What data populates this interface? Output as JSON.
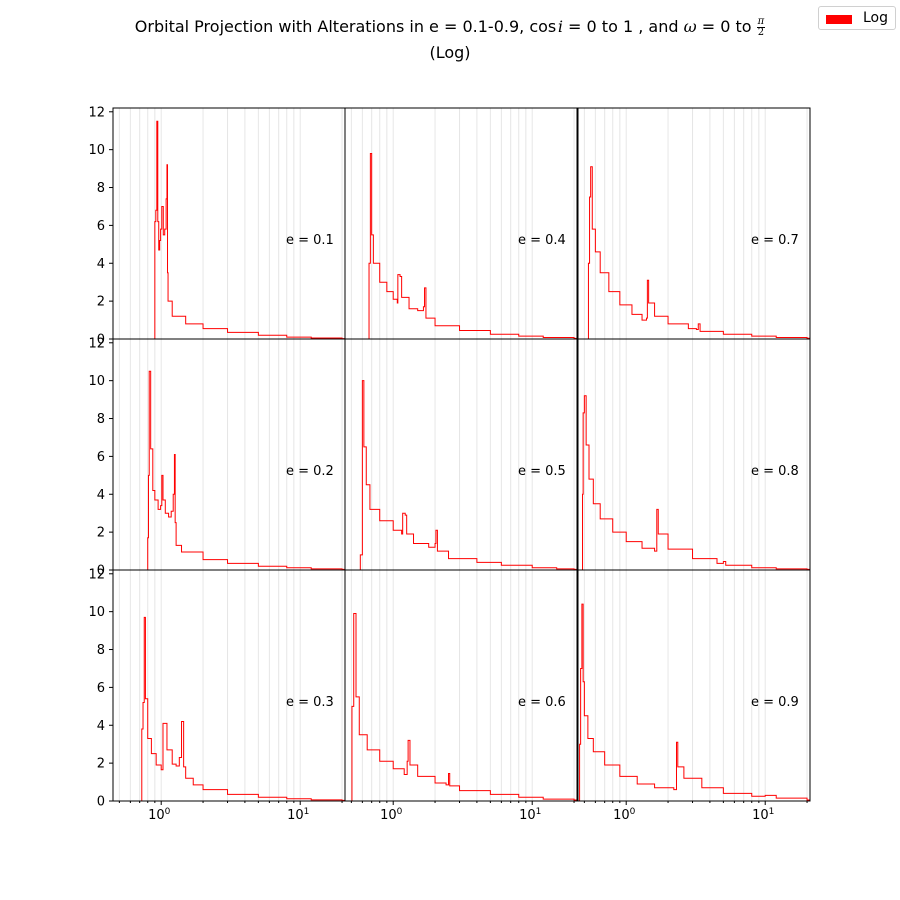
{
  "title": {
    "prefix": "Orbital Projection with Alterations in e = 0.1-0.9, ",
    "cos_part": "cos",
    "cos_var": "i",
    "mid": " = 0 to 1 , and ",
    "omega": "ω",
    "to": " = 0 to ",
    "pi": "π",
    "two": "2",
    "line2": "(Log)"
  },
  "legend": {
    "label": "Log",
    "color": "#ff0000"
  },
  "chart_data": {
    "type": "line",
    "style": "step histogram, 3x3 grid of panels, shared axes",
    "series_color": "#ff0000",
    "x_scale": "log",
    "xlim": [
      0.45,
      21
    ],
    "ylim": [
      0,
      12.2
    ],
    "yticks": [
      0,
      2,
      4,
      6,
      8,
      10,
      12
    ],
    "xtick_labels": [
      {
        "value": 1,
        "base": "10",
        "exp": "0"
      },
      {
        "value": 10,
        "base": "10",
        "exp": "1"
      }
    ],
    "grid": "vertical minor gridlines (log)",
    "legend_position": "top-right",
    "panels": [
      {
        "label": "e = 0.1",
        "points": [
          [
            0.895,
            0
          ],
          [
            0.9,
            6.2
          ],
          [
            0.915,
            6.8
          ],
          [
            0.93,
            11.5
          ],
          [
            0.945,
            6.2
          ],
          [
            0.96,
            4.7
          ],
          [
            0.975,
            5.2
          ],
          [
            0.99,
            5.8
          ],
          [
            1.01,
            7.0
          ],
          [
            1.035,
            5.5
          ],
          [
            1.06,
            5.8
          ],
          [
            1.085,
            7.4
          ],
          [
            1.1,
            9.2
          ],
          [
            1.11,
            3.5
          ],
          [
            1.12,
            2.0
          ],
          [
            1.2,
            1.2
          ],
          [
            1.5,
            0.8
          ],
          [
            2,
            0.55
          ],
          [
            3,
            0.35
          ],
          [
            5,
            0.2
          ],
          [
            8,
            0.1
          ],
          [
            12,
            0.05
          ],
          [
            20,
            0.02
          ]
        ]
      },
      {
        "label": "e = 0.2",
        "points": [
          [
            0.795,
            0
          ],
          [
            0.8,
            1.7
          ],
          [
            0.81,
            5.0
          ],
          [
            0.82,
            10.5
          ],
          [
            0.84,
            6.4
          ],
          [
            0.87,
            4.2
          ],
          [
            0.9,
            3.7
          ],
          [
            0.95,
            3.2
          ],
          [
            0.99,
            3.4
          ],
          [
            1.01,
            5.0
          ],
          [
            1.03,
            3.7
          ],
          [
            1.07,
            3.0
          ],
          [
            1.13,
            2.8
          ],
          [
            1.18,
            3.1
          ],
          [
            1.22,
            4.0
          ],
          [
            1.245,
            6.1
          ],
          [
            1.26,
            2.5
          ],
          [
            1.28,
            1.3
          ],
          [
            1.4,
            0.95
          ],
          [
            2,
            0.55
          ],
          [
            3,
            0.35
          ],
          [
            5,
            0.2
          ],
          [
            8,
            0.12
          ],
          [
            12,
            0.06
          ],
          [
            20,
            0.03
          ]
        ]
      },
      {
        "label": "e = 0.3",
        "points": [
          [
            0.72,
            0
          ],
          [
            0.725,
            3.8
          ],
          [
            0.74,
            5.2
          ],
          [
            0.755,
            9.7
          ],
          [
            0.77,
            5.4
          ],
          [
            0.8,
            3.3
          ],
          [
            0.85,
            2.5
          ],
          [
            0.92,
            1.9
          ],
          [
            1.0,
            1.65
          ],
          [
            1.03,
            4.1
          ],
          [
            1.05,
            4.1
          ],
          [
            1.1,
            2.7
          ],
          [
            1.2,
            1.95
          ],
          [
            1.28,
            1.85
          ],
          [
            1.35,
            2.3
          ],
          [
            1.4,
            4.2
          ],
          [
            1.45,
            1.8
          ],
          [
            1.5,
            1.2
          ],
          [
            1.7,
            0.85
          ],
          [
            2,
            0.6
          ],
          [
            3,
            0.35
          ],
          [
            5,
            0.2
          ],
          [
            8,
            0.12
          ],
          [
            12,
            0.06
          ],
          [
            20,
            0.03
          ]
        ]
      },
      {
        "label": "e = 0.4",
        "points": [
          [
            0.665,
            0
          ],
          [
            0.67,
            4.0
          ],
          [
            0.685,
            9.8
          ],
          [
            0.7,
            5.5
          ],
          [
            0.72,
            4.0
          ],
          [
            0.8,
            3.0
          ],
          [
            0.9,
            2.5
          ],
          [
            1.0,
            2.1
          ],
          [
            1.07,
            1.9
          ],
          [
            1.08,
            3.4
          ],
          [
            1.12,
            3.3
          ],
          [
            1.15,
            2.2
          ],
          [
            1.3,
            1.6
          ],
          [
            1.5,
            1.5
          ],
          [
            1.65,
            1.7
          ],
          [
            1.68,
            2.7
          ],
          [
            1.72,
            1.1
          ],
          [
            2,
            0.7
          ],
          [
            3,
            0.45
          ],
          [
            5,
            0.25
          ],
          [
            8,
            0.15
          ],
          [
            12,
            0.08
          ],
          [
            20,
            0.03
          ]
        ]
      },
      {
        "label": "e = 0.5",
        "points": [
          [
            0.575,
            0
          ],
          [
            0.58,
            0.8
          ],
          [
            0.6,
            10.0
          ],
          [
            0.615,
            6.5
          ],
          [
            0.64,
            4.5
          ],
          [
            0.68,
            3.2
          ],
          [
            0.8,
            2.6
          ],
          [
            1.0,
            2.1
          ],
          [
            1.15,
            1.9
          ],
          [
            1.17,
            3.0
          ],
          [
            1.22,
            2.9
          ],
          [
            1.25,
            1.9
          ],
          [
            1.4,
            1.4
          ],
          [
            1.8,
            1.2
          ],
          [
            2.0,
            1.4
          ],
          [
            2.03,
            2.1
          ],
          [
            2.08,
            1.0
          ],
          [
            2.5,
            0.6
          ],
          [
            4,
            0.4
          ],
          [
            6,
            0.25
          ],
          [
            10,
            0.12
          ],
          [
            15,
            0.06
          ],
          [
            20,
            0.03
          ]
        ]
      },
      {
        "label": "e = 0.6",
        "points": [
          [
            0.5,
            0
          ],
          [
            0.505,
            5.0
          ],
          [
            0.52,
            9.9
          ],
          [
            0.54,
            5.5
          ],
          [
            0.57,
            3.5
          ],
          [
            0.65,
            2.7
          ],
          [
            0.8,
            2.1
          ],
          [
            1.0,
            1.7
          ],
          [
            1.2,
            1.4
          ],
          [
            1.26,
            2.1
          ],
          [
            1.28,
            3.2
          ],
          [
            1.32,
            1.9
          ],
          [
            1.5,
            1.3
          ],
          [
            2,
            0.95
          ],
          [
            2.4,
            0.85
          ],
          [
            2.5,
            1.45
          ],
          [
            2.55,
            0.8
          ],
          [
            3,
            0.55
          ],
          [
            5,
            0.35
          ],
          [
            8,
            0.2
          ],
          [
            12,
            0.1
          ],
          [
            20,
            0.05
          ]
        ]
      },
      {
        "label": "e = 0.7",
        "points": [
          [
            0.53,
            0
          ],
          [
            0.535,
            4.0
          ],
          [
            0.545,
            7.5
          ],
          [
            0.555,
            9.1
          ],
          [
            0.57,
            5.8
          ],
          [
            0.6,
            4.6
          ],
          [
            0.65,
            3.5
          ],
          [
            0.75,
            2.5
          ],
          [
            0.9,
            1.8
          ],
          [
            1.1,
            1.3
          ],
          [
            1.3,
            1.0
          ],
          [
            1.4,
            1.1
          ],
          [
            1.42,
            3.1
          ],
          [
            1.45,
            1.9
          ],
          [
            1.6,
            1.2
          ],
          [
            2,
            0.8
          ],
          [
            2.8,
            0.55
          ],
          [
            3.2,
            0.5
          ],
          [
            3.3,
            0.8
          ],
          [
            3.4,
            0.4
          ],
          [
            5,
            0.25
          ],
          [
            8,
            0.15
          ],
          [
            12,
            0.08
          ],
          [
            20,
            0.04
          ]
        ]
      },
      {
        "label": "e = 0.8",
        "points": [
          [
            0.48,
            0
          ],
          [
            0.485,
            4.0
          ],
          [
            0.49,
            8.3
          ],
          [
            0.5,
            9.2
          ],
          [
            0.515,
            6.6
          ],
          [
            0.54,
            4.8
          ],
          [
            0.58,
            3.5
          ],
          [
            0.65,
            2.7
          ],
          [
            0.8,
            2.0
          ],
          [
            1.0,
            1.5
          ],
          [
            1.3,
            1.15
          ],
          [
            1.6,
            1.0
          ],
          [
            1.66,
            3.2
          ],
          [
            1.7,
            1.9
          ],
          [
            2.0,
            1.1
          ],
          [
            3,
            0.6
          ],
          [
            4.5,
            0.35
          ],
          [
            5,
            0.45
          ],
          [
            5.2,
            0.25
          ],
          [
            8,
            0.12
          ],
          [
            12,
            0.06
          ],
          [
            20,
            0.03
          ]
        ]
      },
      {
        "label": "e = 0.9",
        "points": [
          [
            0.46,
            0
          ],
          [
            0.462,
            3.0
          ],
          [
            0.47,
            7.0
          ],
          [
            0.48,
            10.4
          ],
          [
            0.49,
            6.3
          ],
          [
            0.5,
            4.5
          ],
          [
            0.53,
            3.3
          ],
          [
            0.58,
            2.6
          ],
          [
            0.7,
            1.9
          ],
          [
            0.9,
            1.3
          ],
          [
            1.2,
            0.9
          ],
          [
            1.6,
            0.7
          ],
          [
            2.2,
            0.6
          ],
          [
            2.3,
            3.1
          ],
          [
            2.35,
            1.8
          ],
          [
            2.6,
            1.2
          ],
          [
            3.5,
            0.7
          ],
          [
            5,
            0.4
          ],
          [
            8,
            0.25
          ],
          [
            10,
            0.3
          ],
          [
            12,
            0.15
          ],
          [
            20,
            0.05
          ]
        ]
      }
    ]
  }
}
